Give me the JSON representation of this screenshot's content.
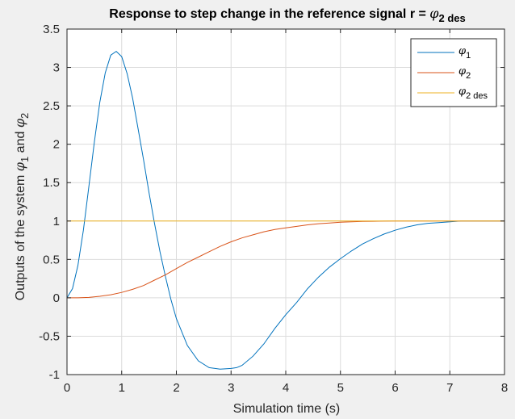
{
  "chart_data": {
    "type": "line",
    "title": {
      "text": "Response to step change in the reference signal r = ",
      "symbol": "φ",
      "subscript": "2 des"
    },
    "xlabel": "Simulation time (s)",
    "ylabel": {
      "text": "Outputs of the system ",
      "symbol1": "φ",
      "sub1": "1",
      "middle": " and ",
      "symbol2": "φ",
      "sub2": "2"
    },
    "xlim": [
      0,
      8
    ],
    "ylim": [
      -1,
      3.5
    ],
    "xticks": [
      0,
      1,
      2,
      3,
      4,
      5,
      6,
      7,
      8
    ],
    "xtick_labels": [
      "0",
      "1",
      "2",
      "3",
      "4",
      "5",
      "6",
      "7",
      "8"
    ],
    "yticks": [
      -1,
      -0.5,
      0,
      0.5,
      1,
      1.5,
      2,
      2.5,
      3,
      3.5
    ],
    "ytick_labels": [
      "-1",
      "-0.5",
      "0",
      "0.5",
      "1",
      "1.5",
      "2",
      "2.5",
      "3",
      "3.5"
    ],
    "grid": true,
    "legend_position": "top-right",
    "series": [
      {
        "legend_symbol": "φ",
        "legend_sub": "1",
        "color": "#0072BD",
        "x": [
          0,
          0.1,
          0.2,
          0.3,
          0.4,
          0.5,
          0.6,
          0.7,
          0.8,
          0.9,
          1.0,
          1.1,
          1.2,
          1.3,
          1.4,
          1.5,
          1.6,
          1.7,
          1.8,
          1.9,
          2.0,
          2.2,
          2.4,
          2.6,
          2.8,
          3.0,
          3.1,
          3.2,
          3.4,
          3.6,
          3.8,
          4.0,
          4.2,
          4.4,
          4.6,
          4.8,
          5.0,
          5.2,
          5.4,
          5.6,
          5.8,
          6.0,
          6.2,
          6.4,
          6.6,
          6.8,
          7.0,
          7.2,
          7.4,
          7.6,
          7.8,
          8.0
        ],
        "y": [
          0,
          0.12,
          0.42,
          0.88,
          1.45,
          2.03,
          2.55,
          2.93,
          3.16,
          3.21,
          3.14,
          2.92,
          2.6,
          2.2,
          1.8,
          1.37,
          0.97,
          0.6,
          0.28,
          -0.02,
          -0.27,
          -0.62,
          -0.82,
          -0.91,
          -0.93,
          -0.92,
          -0.91,
          -0.88,
          -0.76,
          -0.6,
          -0.4,
          -0.22,
          -0.06,
          0.12,
          0.27,
          0.4,
          0.51,
          0.61,
          0.7,
          0.77,
          0.83,
          0.88,
          0.92,
          0.95,
          0.97,
          0.98,
          0.99,
          1.0,
          1.0,
          1.0,
          1.0,
          1.0
        ]
      },
      {
        "legend_symbol": "φ",
        "legend_sub": "2",
        "color": "#D95319",
        "x": [
          0,
          0.2,
          0.4,
          0.6,
          0.8,
          1.0,
          1.2,
          1.4,
          1.6,
          1.8,
          2.0,
          2.2,
          2.4,
          2.6,
          2.8,
          3.0,
          3.2,
          3.4,
          3.6,
          3.8,
          4.0,
          4.2,
          4.4,
          4.6,
          4.8,
          5.0,
          5.2,
          5.4,
          5.6,
          5.8,
          6.0,
          6.2,
          6.4,
          6.6,
          6.8,
          7.0,
          7.2,
          7.4,
          7.6,
          7.8,
          8.0
        ],
        "y": [
          0,
          0.0,
          0.005,
          0.02,
          0.04,
          0.07,
          0.11,
          0.16,
          0.23,
          0.3,
          0.38,
          0.46,
          0.53,
          0.6,
          0.67,
          0.73,
          0.78,
          0.82,
          0.86,
          0.89,
          0.91,
          0.93,
          0.95,
          0.965,
          0.975,
          0.985,
          0.99,
          0.994,
          0.997,
          0.999,
          1.0,
          1.0,
          1.0,
          1.0,
          1.0,
          1.0,
          1.0,
          1.0,
          1.0,
          1.0,
          1.0
        ]
      },
      {
        "legend_symbol": "φ",
        "legend_sub": "2 des",
        "color": "#EDB120",
        "x": [
          0,
          8
        ],
        "y": [
          1,
          1
        ]
      }
    ]
  }
}
